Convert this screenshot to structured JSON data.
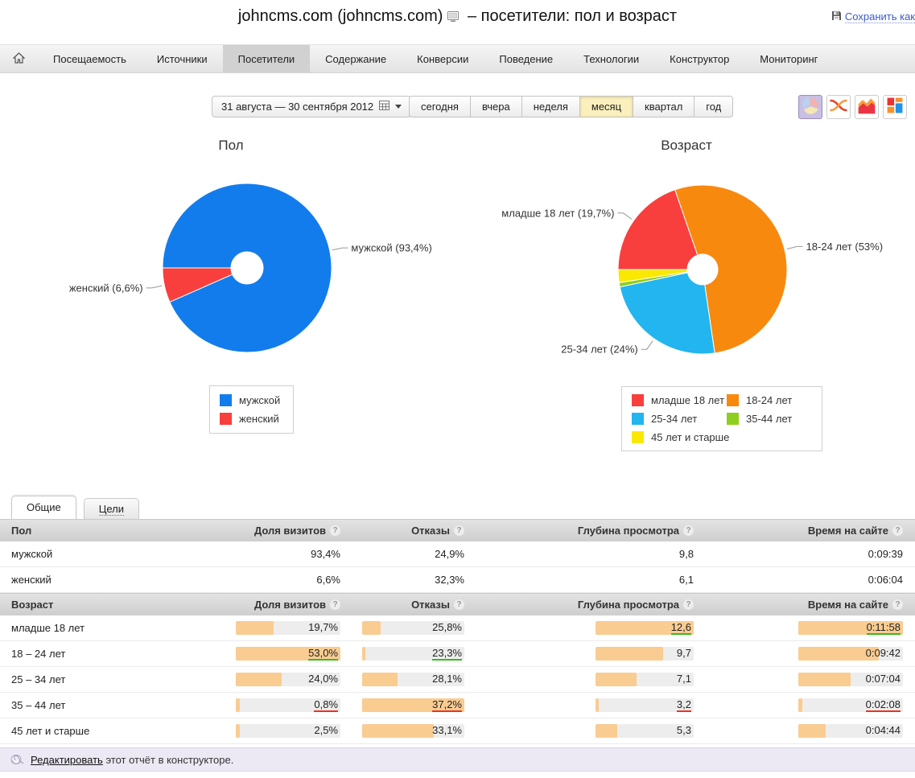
{
  "header": {
    "site_title": "johncms.com (johncms.com)",
    "report_title": "– посетители: пол и возраст",
    "save_as": "Сохранить как"
  },
  "nav": {
    "items": [
      "Посещаемость",
      "Источники",
      "Посетители",
      "Содержание",
      "Конверсии",
      "Поведение",
      "Технологии",
      "Конструктор",
      "Мониторинг"
    ],
    "active": "Посетители"
  },
  "controls": {
    "date_range": "31 августа — 30 сентября 2012",
    "periods": [
      "сегодня",
      "вчера",
      "неделя",
      "месяц",
      "квартал",
      "год"
    ],
    "active_period": "месяц"
  },
  "chart_data": [
    {
      "type": "pie",
      "title": "Пол",
      "units": "% визитов",
      "legend_position": "bottom",
      "slices": [
        {
          "label": "мужской",
          "value": 93.4,
          "color": "#127cec",
          "callout": "мужской (93,4%)"
        },
        {
          "label": "женский",
          "value": 6.6,
          "color": "#f93e3e",
          "callout": "женский (6,6%)"
        }
      ]
    },
    {
      "type": "pie",
      "title": "Возраст",
      "units": "% визитов",
      "legend_position": "bottom",
      "slices": [
        {
          "label": "младше 18 лет",
          "value": 19.7,
          "color": "#f93e3e",
          "callout": "младше 18 лет (19,7%)"
        },
        {
          "label": "18-24 лет",
          "value": 53,
          "color": "#f8890f",
          "callout": "18-24 лет (53%)"
        },
        {
          "label": "25-34 лет",
          "value": 24,
          "color": "#22b5ef",
          "callout": "25-34 лет (24%)"
        },
        {
          "label": "35-44 лет",
          "value": 0.8,
          "color": "#8fce1d"
        },
        {
          "label": "45 лет и старше",
          "value": 2.5,
          "color": "#fae800"
        }
      ]
    }
  ],
  "table": {
    "tabs": [
      "Общие",
      "Цели"
    ],
    "active_tab": "Общие",
    "metric_columns": [
      "Доля визитов",
      "Отказы",
      "Глубина просмотра",
      "Время на сайте"
    ],
    "sections": [
      {
        "dimension": "Пол",
        "rows": [
          {
            "label": "мужской",
            "cells": [
              {
                "text": "93,4%"
              },
              {
                "text": "24,9%"
              },
              {
                "text": "9,8"
              },
              {
                "text": "0:09:39"
              }
            ]
          },
          {
            "label": "женский",
            "cells": [
              {
                "text": "6,6%"
              },
              {
                "text": "32,3%"
              },
              {
                "text": "6,1"
              },
              {
                "text": "0:06:04"
              }
            ]
          }
        ]
      },
      {
        "dimension": "Возраст",
        "rows": [
          {
            "label": "младше 18 лет",
            "cells": [
              {
                "text": "19,7%",
                "bar": 0.36
              },
              {
                "text": "25,8%",
                "bar": 0.18
              },
              {
                "text": "12,6",
                "bar": 1,
                "mark": "best"
              },
              {
                "text": "0:11:58",
                "bar": 1,
                "mark": "best"
              }
            ]
          },
          {
            "label": "18 – 24 лет",
            "cells": [
              {
                "text": "53,0%",
                "bar": 1,
                "mark": "best"
              },
              {
                "text": "23,3%",
                "bar": 0.035,
                "mark": "best"
              },
              {
                "text": "9,7",
                "bar": 0.69
              },
              {
                "text": "0:09:42",
                "bar": 0.77
              }
            ]
          },
          {
            "label": "25 – 34 лет",
            "cells": [
              {
                "text": "24,0%",
                "bar": 0.44
              },
              {
                "text": "28,1%",
                "bar": 0.35
              },
              {
                "text": "7,1",
                "bar": 0.42
              },
              {
                "text": "0:07:04",
                "bar": 0.5
              }
            ]
          },
          {
            "label": "35 – 44 лет",
            "cells": [
              {
                "text": "0,8%",
                "bar": 0.035,
                "mark": "worst"
              },
              {
                "text": "37,2%",
                "bar": 1,
                "mark": "worst"
              },
              {
                "text": "3,2",
                "bar": 0.035,
                "mark": "worst"
              },
              {
                "text": "0:02:08",
                "bar": 0.035,
                "mark": "worst"
              }
            ]
          },
          {
            "label": "45 лет и старше",
            "cells": [
              {
                "text": "2,5%",
                "bar": 0.04
              },
              {
                "text": "33,1%",
                "bar": 0.7
              },
              {
                "text": "5,3",
                "bar": 0.22
              },
              {
                "text": "0:04:44",
                "bar": 0.26
              }
            ]
          }
        ]
      }
    ]
  },
  "footer": {
    "edit_link": "Редактировать",
    "text": "этот отчёт в конструкторе."
  },
  "colors": {
    "bar_fill": "#f9cc92",
    "bar_track": "#ededed",
    "best_underline": "#33bd1a",
    "worst_underline": "#ee3124",
    "link_blue": "#3d5bcb",
    "active_period_bg": "#fbf0bd",
    "selected_chart_btn_bg": "#c9bfe3"
  }
}
